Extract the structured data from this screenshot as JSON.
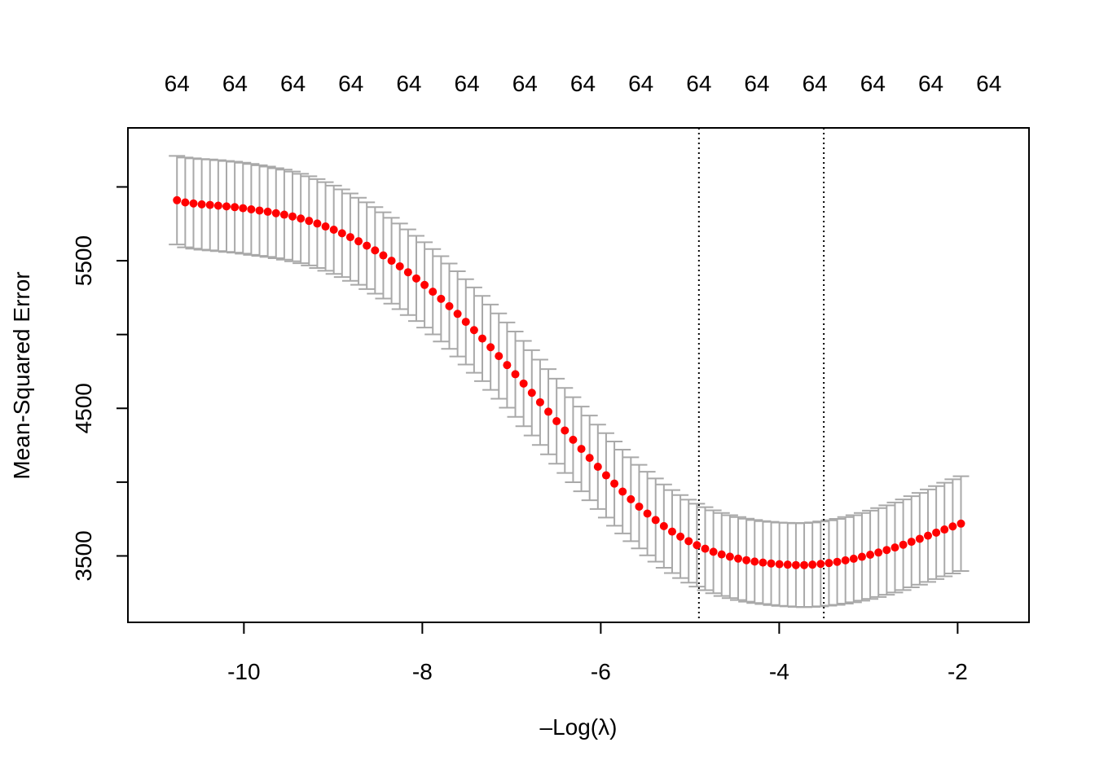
{
  "chart_data": {
    "type": "scatter",
    "description_note": "cv.glmnet cross-validation curve",
    "xlabel": "Log(λ)",
    "xlabel_prefix": "–",
    "ylabel": "Mean-Squared Error",
    "xlim": [
      -11.3,
      -1.2
    ],
    "ylim": [
      3050,
      6400
    ],
    "x_ticks": [
      -10,
      -8,
      -6,
      -4,
      -2
    ],
    "x_tick_labels": [
      "-10",
      "-8",
      "-6",
      "-4",
      "-2"
    ],
    "y_ticks": [
      3500,
      4000,
      4500,
      5000,
      5500,
      6000
    ],
    "y_tick_labels": [
      "3500",
      "",
      "4500",
      "",
      "5500",
      ""
    ],
    "top_ticks": [
      -10.75,
      -10.1,
      -9.45,
      -8.8,
      -8.15,
      -7.5,
      -6.85,
      -6.2,
      -5.55,
      -4.9,
      -4.25,
      -3.6,
      -2.95,
      -2.3,
      -1.65
    ],
    "top_tick_labels": [
      "64",
      "64",
      "64",
      "64",
      "64",
      "64",
      "64",
      "64",
      "64",
      "64",
      "64",
      "64",
      "64",
      "64",
      "64"
    ],
    "vlines": [
      -4.9,
      -3.5
    ],
    "point_color": "#ff0000",
    "errorbar_color": "#a9a9a9",
    "series": [
      {
        "name": "cvm",
        "x_start": -10.75,
        "x_step": 0.0925,
        "cvm": [
          5910,
          5895,
          5888,
          5882,
          5878,
          5873,
          5868,
          5863,
          5856,
          5848,
          5840,
          5832,
          5822,
          5812,
          5800,
          5786,
          5770,
          5752,
          5732,
          5710,
          5686,
          5660,
          5632,
          5602,
          5570,
          5536,
          5500,
          5462,
          5422,
          5380,
          5336,
          5290,
          5242,
          5192,
          5140,
          5086,
          5030,
          4973,
          4914,
          4854,
          4793,
          4731,
          4668,
          4605,
          4541,
          4477,
          4413,
          4350,
          4287,
          4225,
          4164,
          4104,
          4046,
          3990,
          3936,
          3884,
          3834,
          3787,
          3743,
          3702,
          3665,
          3631,
          3600,
          3573,
          3549,
          3528,
          3510,
          3495,
          3482,
          3471,
          3462,
          3455,
          3449,
          3444,
          3441,
          3438,
          3438,
          3441,
          3446,
          3452,
          3460,
          3470,
          3481,
          3494,
          3508,
          3523,
          3540,
          3557,
          3576,
          3596,
          3616,
          3637,
          3658,
          3679,
          3700,
          3719
        ],
        "se": [
          300,
          304,
          306,
          307,
          308,
          308,
          308,
          308,
          308,
          308,
          307,
          306,
          305,
          305,
          304,
          303,
          302,
          301,
          300,
          299,
          297,
          296,
          295,
          294,
          293,
          292,
          291,
          290,
          290,
          289,
          289,
          289,
          289,
          289,
          289,
          289,
          289,
          289,
          289,
          289,
          289,
          289,
          289,
          289,
          289,
          289,
          288,
          288,
          288,
          287,
          287,
          286,
          286,
          285,
          284,
          284,
          283,
          283,
          282,
          282,
          281,
          281,
          281,
          281,
          281,
          281,
          281,
          281,
          281,
          281,
          281,
          281,
          282,
          282,
          283,
          283,
          285,
          286,
          288,
          289,
          291,
          293,
          295,
          297,
          299,
          301,
          303,
          305,
          307,
          309,
          311,
          313,
          315,
          317,
          319,
          321
        ]
      }
    ]
  }
}
